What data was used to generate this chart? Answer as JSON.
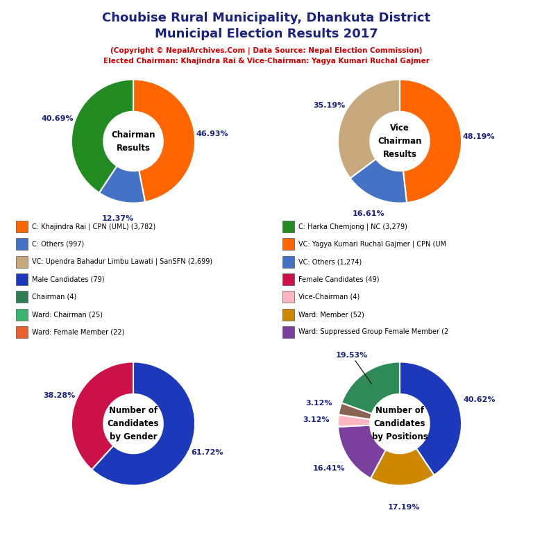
{
  "title_line1": "Choubise Rural Municipality, Dhankuta District",
  "title_line2": "Municipal Election Results 2017",
  "subtitle1": "(Copyright © NepalArchives.Com | Data Source: Nepal Election Commission)",
  "subtitle2": "Elected Chairman: Khajindra Rai & Vice-Chairman: Yagya Kumari Ruchal Gajmer",
  "chairman_values": [
    46.93,
    12.37,
    40.69
  ],
  "chairman_colors": [
    "#FF6600",
    "#4472C4",
    "#228B22"
  ],
  "chairman_pct_labels": [
    "46.93%",
    "12.37%",
    "40.69%"
  ],
  "vc_values": [
    48.19,
    16.61,
    35.19
  ],
  "vc_colors": [
    "#FF6600",
    "#4472C4",
    "#C8A97E"
  ],
  "vc_pct_labels": [
    "48.19%",
    "16.61%",
    "35.19%"
  ],
  "gender_values": [
    61.72,
    38.28
  ],
  "gender_colors": [
    "#1C39BB",
    "#CC1148"
  ],
  "gender_pct_labels": [
    "61.72%",
    "38.28%"
  ],
  "positions_values": [
    40.62,
    17.19,
    16.41,
    3.12,
    3.12,
    19.53
  ],
  "positions_colors": [
    "#1C39BB",
    "#CC8800",
    "#7B3F9E",
    "#FFB6C1",
    "#8B6355",
    "#2E8B57"
  ],
  "positions_pct_labels": [
    "40.62%",
    "17.19%",
    "16.41%",
    "3.12%",
    "3.12%",
    "19.53%"
  ],
  "legend_left": [
    [
      "C: Khajindra Rai | CPN (UML) (3,782)",
      "#FF6600"
    ],
    [
      "C: Others (997)",
      "#4472C4"
    ],
    [
      "VC: Upendra Bahadur Limbu Lawati | SanSFN (2,699)",
      "#C8A97E"
    ],
    [
      "Male Candidates (79)",
      "#1C39BB"
    ],
    [
      "Chairman (4)",
      "#2E7D52"
    ],
    [
      "Ward: Chairman (25)",
      "#3CB371"
    ],
    [
      "Ward: Female Member (22)",
      "#E8612C"
    ]
  ],
  "legend_right": [
    [
      "C: Harka Chemjong | NC (3,279)",
      "#228B22"
    ],
    [
      "VC: Yagya Kumari Ruchal Gajmer | CPN (UM",
      "#FF6600"
    ],
    [
      "VC: Others (1,274)",
      "#4472C4"
    ],
    [
      "Female Candidates (49)",
      "#CC1148"
    ],
    [
      "Vice-Chairman (4)",
      "#FFB6C1"
    ],
    [
      "Ward: Member (52)",
      "#CC8800"
    ],
    [
      "Ward: Suppressed Group Female Member (2",
      "#7B3F9E"
    ]
  ],
  "title_color": "#1A237E",
  "subtitle_color": "#CC0000",
  "pct_color": "#1A237E"
}
